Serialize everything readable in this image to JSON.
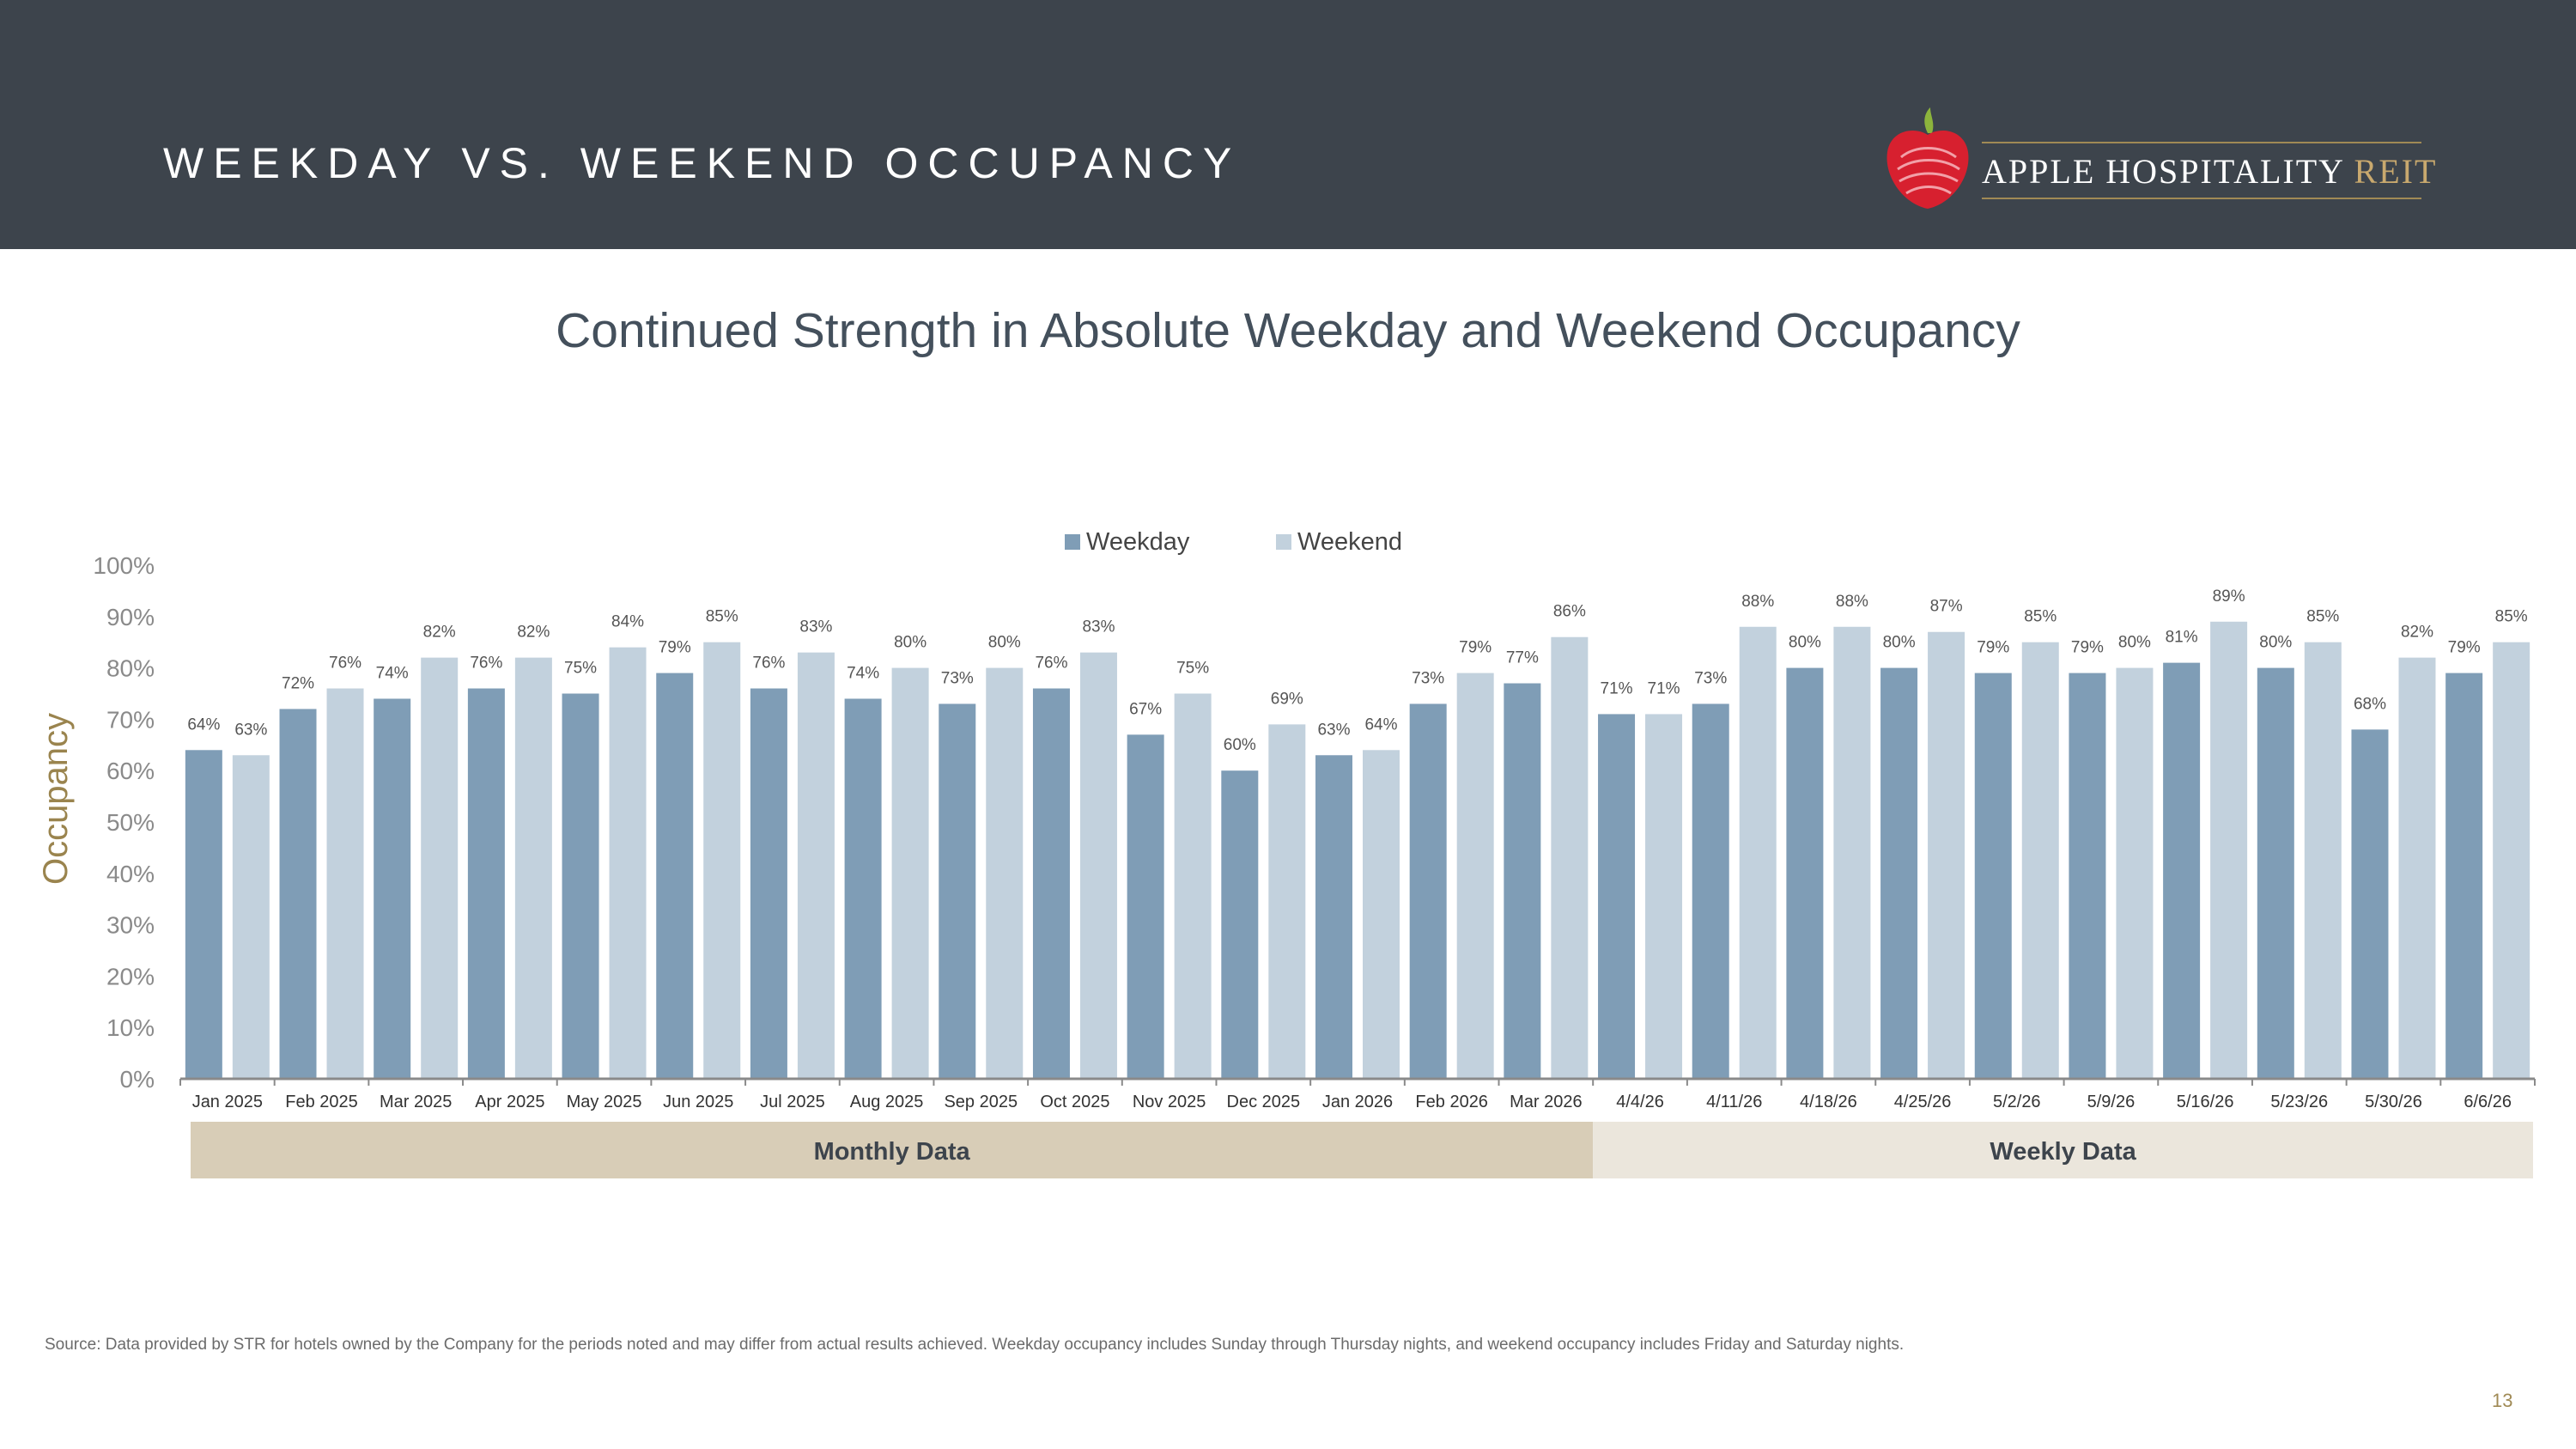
{
  "header": {
    "title": "WEEKDAY VS. WEEKEND OCCUPANCY",
    "logo_text": "APPLE HOSPITALITY",
    "logo_suffix": "REIT"
  },
  "subtitle": "Continued Strength in Absolute Weekday and Weekend Occupancy",
  "chart_data": {
    "type": "bar",
    "title": "",
    "xlabel": "",
    "ylabel": "Occupancy",
    "ylim": [
      0,
      100
    ],
    "y_ticks": [
      "0%",
      "10%",
      "20%",
      "30%",
      "40%",
      "50%",
      "60%",
      "70%",
      "80%",
      "90%",
      "100%"
    ],
    "legend_position": "top-center",
    "categories": [
      "Jan 2025",
      "Feb 2025",
      "Mar 2025",
      "Apr 2025",
      "May 2025",
      "Jun 2025",
      "Jul 2025",
      "Aug 2025",
      "Sep 2025",
      "Oct 2025",
      "Nov 2025",
      "Dec 2025",
      "Jan 2026",
      "Feb 2026",
      "Mar 2026",
      "4/4/26",
      "4/11/26",
      "4/18/26",
      "4/25/26",
      "5/2/26",
      "5/9/26",
      "5/16/26",
      "5/23/26",
      "5/30/26",
      "6/6/26"
    ],
    "series": [
      {
        "name": "Weekday",
        "color": "#7f9db6",
        "values": [
          64,
          72,
          74,
          76,
          75,
          79,
          76,
          74,
          73,
          76,
          67,
          60,
          63,
          73,
          77,
          71,
          73,
          80,
          80,
          79,
          79,
          81,
          80,
          68,
          79
        ]
      },
      {
        "name": "Weekend",
        "color": "#c2d1dd",
        "values": [
          63,
          76,
          82,
          82,
          84,
          85,
          83,
          80,
          80,
          83,
          75,
          69,
          64,
          79,
          86,
          71,
          88,
          88,
          87,
          85,
          80,
          89,
          85,
          82,
          85
        ]
      }
    ],
    "groups": [
      {
        "label": "Monthly Data",
        "start": 0,
        "end": 14,
        "color": "#d8cdb7"
      },
      {
        "label": "Weekly Data",
        "start": 15,
        "end": 24,
        "color": "#ebe6dc"
      }
    ]
  },
  "footnote": "Source:  Data provided by STR for hotels owned by the Company for the periods noted and may differ from actual results achieved. Weekday occupancy includes Sunday through Thursday nights, and weekend occupancy includes Friday and Saturday nights.",
  "page_number": "13"
}
